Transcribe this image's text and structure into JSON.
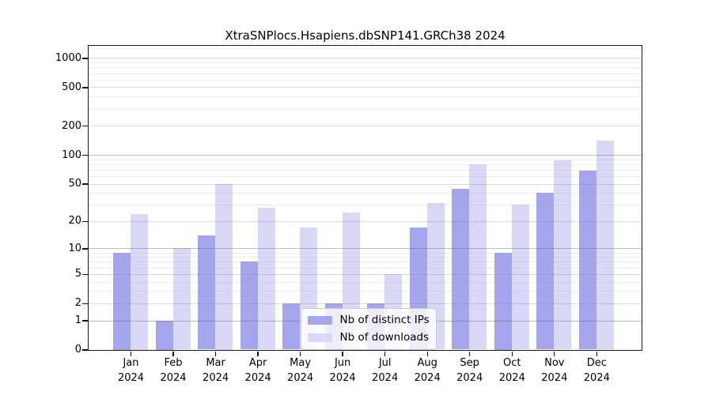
{
  "chart_data": {
    "type": "bar",
    "title": "XtraSNPlocs.Hsapiens.dbSNP141.GRCh38 2024",
    "year_label": "2024",
    "categories": [
      "Jan",
      "Feb",
      "Mar",
      "Apr",
      "May",
      "Jun",
      "Jul",
      "Aug",
      "Sep",
      "Oct",
      "Nov",
      "Dec"
    ],
    "series": [
      {
        "name": "Nb of distinct IPs",
        "color": "#a5a5ed",
        "values": [
          9,
          1,
          14,
          7,
          2,
          2,
          2,
          17,
          44,
          9,
          40,
          68
        ]
      },
      {
        "name": "Nb of downloads",
        "color": "#d9d9f7",
        "values": [
          24,
          10,
          50,
          28,
          17,
          25,
          5,
          31,
          80,
          30,
          88,
          140
        ]
      }
    ],
    "y_ticks": [
      0,
      1,
      2,
      5,
      10,
      20,
      50,
      100,
      200,
      500,
      1000
    ],
    "scale": "log1p",
    "ylim": [
      0,
      1348
    ],
    "xlabel": "",
    "ylabel": "",
    "grid": true,
    "legend_position": "inside-bottom-center"
  }
}
